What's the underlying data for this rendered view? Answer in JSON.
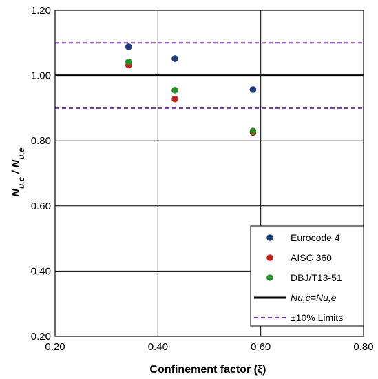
{
  "chart_data": {
    "type": "scatter",
    "xlabel": "Confinement factor (ξ)",
    "ylabel": "Nu,c / Nu,e",
    "xlim": [
      0.2,
      0.8
    ],
    "ylim": [
      0.2,
      1.2
    ],
    "x_ticks": [
      "0.20",
      "0.40",
      "0.60",
      "0.80"
    ],
    "y_ticks": [
      "0.20",
      "0.40",
      "0.60",
      "0.80",
      "1.00",
      "1.20"
    ],
    "grid": true,
    "legend_position": "bottom-right",
    "series": [
      {
        "name": "Eurocode 4",
        "color": "#1f3a78",
        "marker": "circle",
        "points": [
          [
            0.343,
            1.088
          ],
          [
            0.433,
            1.052
          ],
          [
            0.585,
            0.957
          ]
        ]
      },
      {
        "name": "AISC 360",
        "color": "#c0221e",
        "marker": "circle",
        "points": [
          [
            0.343,
            1.032
          ],
          [
            0.433,
            0.928
          ],
          [
            0.585,
            0.825
          ]
        ]
      },
      {
        "name": "DBJ/T13-51",
        "color": "#2a8f2a",
        "marker": "circle",
        "points": [
          [
            0.343,
            1.042
          ],
          [
            0.433,
            0.955
          ],
          [
            0.585,
            0.83
          ]
        ]
      }
    ],
    "reference_lines": [
      {
        "name": "Nu,c=Nu,e",
        "y": 1.0,
        "style": "solid",
        "color": "#000000"
      },
      {
        "name": "±10% Limits",
        "y": [
          0.9,
          1.1
        ],
        "style": "dashed",
        "color": "#7030a0"
      }
    ]
  }
}
